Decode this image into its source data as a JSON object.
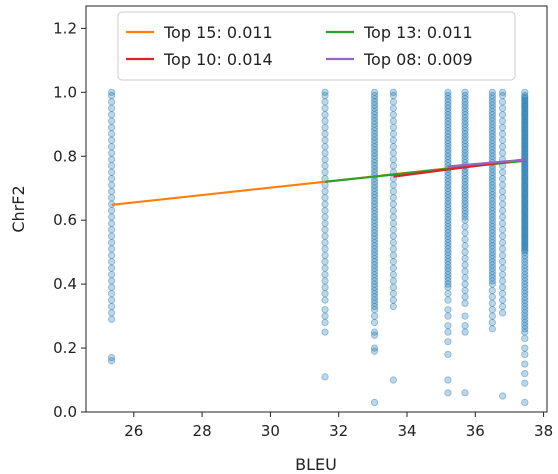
{
  "chart_data": {
    "type": "scatter",
    "title": "",
    "xlabel": "BLEU",
    "ylabel": "ChrF2",
    "xlim": [
      24.6,
      38.1
    ],
    "ylim": [
      0.0,
      1.27
    ],
    "xticks": [
      "26",
      "28",
      "30",
      "32",
      "34",
      "36",
      "38"
    ],
    "xtick_values": [
      26,
      28,
      30,
      32,
      34,
      36,
      38
    ],
    "yticks": [
      "0.0",
      "0.2",
      "0.4",
      "0.6",
      "0.8",
      "1.0",
      "1.2"
    ],
    "ytick_values": [
      0.0,
      0.2,
      0.4,
      0.6,
      0.8,
      1.0,
      1.2
    ],
    "grid": false,
    "legend_position": "top-center",
    "point_color": "#1f77b4",
    "scatter_columns": [
      {
        "x": 25.35,
        "y": [
          1.0,
          0.99,
          0.97,
          0.95,
          0.93,
          0.91,
          0.89,
          0.87,
          0.85,
          0.83,
          0.81,
          0.79,
          0.77,
          0.75,
          0.73,
          0.71,
          0.69,
          0.67,
          0.65,
          0.63,
          0.61,
          0.59,
          0.57,
          0.55,
          0.53,
          0.51,
          0.49,
          0.47,
          0.45,
          0.43,
          0.41,
          0.39,
          0.37,
          0.35,
          0.33,
          0.31,
          0.29,
          0.17,
          0.16
        ]
      },
      {
        "x": 31.6,
        "y": [
          1.0,
          0.99,
          0.97,
          0.95,
          0.93,
          0.91,
          0.89,
          0.87,
          0.85,
          0.83,
          0.81,
          0.79,
          0.77,
          0.75,
          0.73,
          0.71,
          0.69,
          0.67,
          0.65,
          0.63,
          0.61,
          0.59,
          0.57,
          0.55,
          0.53,
          0.51,
          0.49,
          0.47,
          0.45,
          0.43,
          0.41,
          0.39,
          0.37,
          0.35,
          0.32,
          0.3,
          0.28,
          0.25,
          0.11
        ]
      },
      {
        "x": 33.05,
        "y": [
          1.0,
          0.99,
          0.98,
          0.97,
          0.96,
          0.95,
          0.94,
          0.93,
          0.92,
          0.91,
          0.9,
          0.89,
          0.88,
          0.87,
          0.86,
          0.85,
          0.84,
          0.83,
          0.82,
          0.81,
          0.8,
          0.79,
          0.78,
          0.77,
          0.76,
          0.75,
          0.74,
          0.73,
          0.72,
          0.71,
          0.7,
          0.69,
          0.68,
          0.67,
          0.66,
          0.65,
          0.64,
          0.63,
          0.62,
          0.61,
          0.6,
          0.59,
          0.58,
          0.57,
          0.56,
          0.55,
          0.54,
          0.53,
          0.52,
          0.51,
          0.5,
          0.49,
          0.48,
          0.47,
          0.46,
          0.45,
          0.44,
          0.43,
          0.42,
          0.41,
          0.4,
          0.39,
          0.38,
          0.37,
          0.36,
          0.35,
          0.34,
          0.33,
          0.32,
          0.3,
          0.28,
          0.25,
          0.24,
          0.2,
          0.19,
          0.03
        ]
      },
      {
        "x": 33.6,
        "y": [
          1.0,
          0.99,
          0.97,
          0.95,
          0.93,
          0.91,
          0.89,
          0.87,
          0.85,
          0.83,
          0.81,
          0.79,
          0.77,
          0.75,
          0.73,
          0.71,
          0.69,
          0.67,
          0.65,
          0.63,
          0.61,
          0.59,
          0.57,
          0.55,
          0.53,
          0.51,
          0.49,
          0.47,
          0.45,
          0.43,
          0.41,
          0.39,
          0.37,
          0.35,
          0.33,
          0.1
        ]
      },
      {
        "x": 35.2,
        "y": [
          1.0,
          0.99,
          0.98,
          0.97,
          0.96,
          0.95,
          0.94,
          0.93,
          0.92,
          0.91,
          0.9,
          0.89,
          0.88,
          0.87,
          0.86,
          0.85,
          0.84,
          0.83,
          0.82,
          0.81,
          0.8,
          0.79,
          0.78,
          0.77,
          0.76,
          0.75,
          0.74,
          0.73,
          0.72,
          0.71,
          0.7,
          0.69,
          0.68,
          0.67,
          0.66,
          0.65,
          0.64,
          0.63,
          0.62,
          0.61,
          0.6,
          0.59,
          0.58,
          0.57,
          0.56,
          0.55,
          0.54,
          0.53,
          0.52,
          0.51,
          0.5,
          0.49,
          0.48,
          0.47,
          0.46,
          0.45,
          0.44,
          0.43,
          0.42,
          0.41,
          0.4,
          0.39,
          0.37,
          0.35,
          0.32,
          0.3,
          0.27,
          0.25,
          0.22,
          0.18,
          0.1,
          0.06
        ]
      },
      {
        "x": 35.7,
        "y": [
          1.0,
          0.99,
          0.98,
          0.97,
          0.96,
          0.95,
          0.94,
          0.93,
          0.92,
          0.91,
          0.9,
          0.89,
          0.88,
          0.87,
          0.86,
          0.85,
          0.84,
          0.83,
          0.82,
          0.81,
          0.8,
          0.79,
          0.78,
          0.77,
          0.76,
          0.75,
          0.74,
          0.73,
          0.72,
          0.71,
          0.7,
          0.69,
          0.68,
          0.67,
          0.66,
          0.65,
          0.64,
          0.63,
          0.62,
          0.61,
          0.6,
          0.58,
          0.56,
          0.54,
          0.52,
          0.5,
          0.48,
          0.46,
          0.44,
          0.42,
          0.4,
          0.38,
          0.36,
          0.34,
          0.3,
          0.27,
          0.25,
          0.06
        ]
      },
      {
        "x": 36.5,
        "y": [
          1.0,
          0.99,
          0.98,
          0.97,
          0.96,
          0.95,
          0.94,
          0.93,
          0.92,
          0.91,
          0.9,
          0.89,
          0.88,
          0.87,
          0.86,
          0.85,
          0.84,
          0.83,
          0.82,
          0.81,
          0.8,
          0.79,
          0.78,
          0.77,
          0.76,
          0.75,
          0.74,
          0.73,
          0.72,
          0.71,
          0.7,
          0.69,
          0.68,
          0.67,
          0.66,
          0.65,
          0.64,
          0.63,
          0.62,
          0.61,
          0.6,
          0.59,
          0.58,
          0.57,
          0.56,
          0.55,
          0.54,
          0.53,
          0.52,
          0.51,
          0.5,
          0.49,
          0.48,
          0.47,
          0.46,
          0.45,
          0.44,
          0.43,
          0.42,
          0.41,
          0.4,
          0.38,
          0.36,
          0.34,
          0.32,
          0.3,
          0.28,
          0.26
        ]
      },
      {
        "x": 36.8,
        "y": [
          1.0,
          0.99,
          0.97,
          0.95,
          0.93,
          0.91,
          0.89,
          0.87,
          0.85,
          0.83,
          0.81,
          0.79,
          0.77,
          0.75,
          0.73,
          0.71,
          0.69,
          0.67,
          0.65,
          0.63,
          0.61,
          0.59,
          0.57,
          0.55,
          0.53,
          0.51,
          0.49,
          0.47,
          0.45,
          0.43,
          0.41,
          0.39,
          0.37,
          0.35,
          0.33,
          0.31,
          0.05
        ]
      },
      {
        "x": 37.45,
        "y": [
          1.0,
          0.99,
          0.985,
          0.98,
          0.975,
          0.97,
          0.965,
          0.96,
          0.955,
          0.95,
          0.945,
          0.94,
          0.935,
          0.93,
          0.925,
          0.92,
          0.915,
          0.91,
          0.905,
          0.9,
          0.895,
          0.89,
          0.885,
          0.88,
          0.875,
          0.87,
          0.865,
          0.86,
          0.855,
          0.85,
          0.845,
          0.84,
          0.835,
          0.83,
          0.825,
          0.82,
          0.815,
          0.81,
          0.805,
          0.8,
          0.795,
          0.79,
          0.785,
          0.78,
          0.775,
          0.77,
          0.765,
          0.76,
          0.755,
          0.75,
          0.745,
          0.74,
          0.735,
          0.73,
          0.725,
          0.72,
          0.715,
          0.71,
          0.705,
          0.7,
          0.695,
          0.69,
          0.685,
          0.68,
          0.675,
          0.67,
          0.665,
          0.66,
          0.655,
          0.65,
          0.645,
          0.64,
          0.635,
          0.63,
          0.625,
          0.62,
          0.615,
          0.61,
          0.605,
          0.6,
          0.595,
          0.59,
          0.585,
          0.58,
          0.575,
          0.57,
          0.565,
          0.56,
          0.555,
          0.55,
          0.545,
          0.54,
          0.535,
          0.53,
          0.525,
          0.52,
          0.515,
          0.51,
          0.505,
          0.5,
          0.49,
          0.48,
          0.47,
          0.46,
          0.45,
          0.44,
          0.43,
          0.42,
          0.41,
          0.4,
          0.39,
          0.38,
          0.37,
          0.36,
          0.35,
          0.34,
          0.33,
          0.32,
          0.31,
          0.3,
          0.29,
          0.28,
          0.27,
          0.26,
          0.25,
          0.23,
          0.2,
          0.18,
          0.15,
          0.12,
          0.09,
          0.03
        ]
      }
    ],
    "series": [
      {
        "name": "Top 15:  0.011",
        "color": "#ff7f0e",
        "x": [
          25.35,
          37.45
        ],
        "y": [
          0.648,
          0.788
        ]
      },
      {
        "name": "Top 13:  0.011",
        "color": "#2ca02c",
        "x": [
          31.6,
          37.45
        ],
        "y": [
          0.72,
          0.786
        ]
      },
      {
        "name": "Top 10:  0.014",
        "color": "#d62728",
        "x": [
          33.6,
          37.45
        ],
        "y": [
          0.736,
          0.79
        ]
      },
      {
        "name": "Top 08:  0.009",
        "color": "#9467bd",
        "x": [
          35.2,
          37.45
        ],
        "y": [
          0.768,
          0.789
        ]
      }
    ],
    "legend_order": [
      0,
      2,
      1,
      3
    ]
  }
}
